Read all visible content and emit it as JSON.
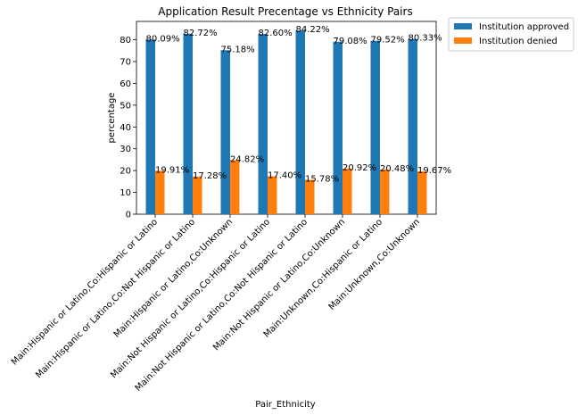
{
  "chart_data": {
    "type": "bar",
    "title": "Application Result Precentage vs Ethnicity Pairs",
    "xlabel": "Pair_Ethnicity",
    "ylabel": "percentage",
    "ylim": [
      0,
      88.4
    ],
    "yticks": [
      0,
      10,
      20,
      30,
      40,
      50,
      60,
      70,
      80
    ],
    "grid": false,
    "legend_position": "outside-top-right",
    "categories": [
      "Main:Hispanic or Latino,Co:Hispanic or Latino",
      "Main:Hispanic or Latino,Co:Not Hispanic or Latino",
      "Main:Hispanic or Latino,Co:Unknown",
      "Main:Not Hispanic or Latino,Co:Hispanic or Latino",
      "Main:Not Hispanic or Latino,Co:Not Hispanic or Latino",
      "Main:Not Hispanic or Latino,Co:Unknown",
      "Main:Unknown,Co:Hispanic or Latino",
      "Main:Unknown,Co:Unknown"
    ],
    "series": [
      {
        "name": "Institution approved",
        "color": "#1f77b4",
        "values": [
          80.09,
          82.72,
          75.18,
          82.6,
          84.22,
          79.08,
          79.52,
          80.33
        ],
        "labels": [
          "80.09%",
          "82.72%",
          "75.18%",
          "82.60%",
          "84.22%",
          "79.08%",
          "79.52%",
          "80.33%"
        ]
      },
      {
        "name": "Institution denied",
        "color": "#ff7f0e",
        "values": [
          19.91,
          17.28,
          24.82,
          17.4,
          15.78,
          20.92,
          20.48,
          19.67
        ],
        "labels": [
          "19.91%",
          "17.28%",
          "24.82%",
          "17.40%",
          "15.78%",
          "20.92%",
          "20.48%",
          "19.67%"
        ]
      }
    ]
  }
}
